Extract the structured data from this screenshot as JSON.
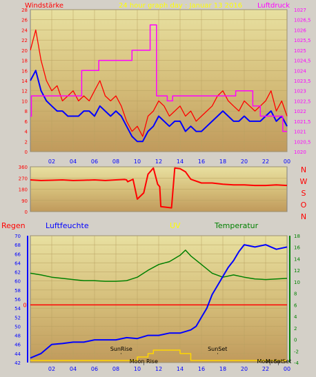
{
  "header": {
    "left": "Windstärke",
    "center": "24 hour graph day : Januar 13 2016",
    "right": "Luftdruck"
  },
  "chart_data": [
    {
      "type": "line",
      "panel": "wind-pressure",
      "x_ticks": [
        "02",
        "04",
        "06",
        "08",
        "10",
        "12",
        "14",
        "16",
        "18",
        "20",
        "22",
        "00"
      ],
      "y_left_ticks": [
        "0",
        "2",
        "4",
        "6",
        "8",
        "10",
        "12",
        "14",
        "16",
        "18",
        "20",
        "22",
        "24",
        "26",
        "28"
      ],
      "y_left_range": [
        0,
        28
      ],
      "y_right_ticks": [
        "1020",
        "1020,5",
        "1021",
        "1021,5",
        "1022",
        "1022,5",
        "1023",
        "1023,5",
        "1024",
        "1024,5",
        "1025",
        "1025,5",
        "1026",
        "1026,5",
        "1027"
      ],
      "y_right_range": [
        1020,
        1027
      ],
      "series": [
        {
          "color": "#ff0000",
          "x": [
            0,
            0.5,
            1,
            1.5,
            2,
            2.5,
            3,
            3.5,
            4,
            4.5,
            5,
            5.5,
            6,
            6.5,
            7,
            7.5,
            8,
            8.5,
            9,
            9.5,
            10,
            10.5,
            11,
            11.5,
            12,
            12.5,
            13,
            13.5,
            14,
            14.5,
            15,
            15.5,
            16,
            16.5,
            17,
            17.5,
            18,
            18.5,
            19,
            19.5,
            20,
            20.5,
            21,
            21.5,
            22,
            22.5,
            23,
            23.5,
            24
          ],
          "y": [
            20,
            24,
            18,
            14,
            12,
            13,
            10,
            11,
            12,
            10,
            11,
            10,
            12,
            14,
            11,
            10,
            11,
            9,
            6,
            4,
            5,
            3,
            7,
            8,
            10,
            9,
            7,
            8,
            9,
            7,
            8,
            6,
            7,
            8,
            9,
            11,
            12,
            10,
            9,
            8,
            10,
            9,
            8,
            9,
            10,
            12,
            8,
            10,
            7
          ]
        },
        {
          "color": "#0000ff",
          "x": [
            0,
            0.5,
            1,
            1.5,
            2,
            2.5,
            3,
            3.5,
            4,
            4.5,
            5,
            5.5,
            6,
            6.5,
            7,
            7.5,
            8,
            8.5,
            9,
            9.5,
            10,
            10.5,
            11,
            11.5,
            12,
            12.5,
            13,
            13.5,
            14,
            14.5,
            15,
            15.5,
            16,
            16.5,
            17,
            17.5,
            18,
            18.5,
            19,
            19.5,
            20,
            20.5,
            21,
            21.5,
            22,
            22.5,
            23,
            23.5,
            24
          ],
          "y": [
            14,
            16,
            12,
            10,
            9,
            8,
            8,
            7,
            7,
            7,
            8,
            8,
            7,
            9,
            8,
            7,
            8,
            7,
            5,
            3,
            2,
            2,
            4,
            5,
            7,
            6,
            5,
            6,
            6,
            4,
            5,
            4,
            4,
            5,
            6,
            7,
            8,
            7,
            6,
            6,
            7,
            6,
            6,
            6,
            7,
            8,
            6,
            7,
            5
          ]
        },
        {
          "color": "#ff00ff",
          "axis": "right",
          "x": [
            0,
            0.1,
            0.1,
            2.4,
            2.4,
            4.8,
            4.8,
            6.4,
            6.4,
            9.5,
            9.5,
            10.6,
            10.6,
            11.2,
            11.2,
            11.8,
            11.8,
            12.8,
            12.8,
            13.3,
            13.3,
            19.2,
            19.2,
            20.8,
            20.8,
            21.5,
            21.5,
            23.6,
            23.6,
            24
          ],
          "y": [
            1021.75,
            1021.75,
            1022.75,
            1022.75,
            1022.75,
            1022.75,
            1024,
            1024,
            1024.5,
            1024.5,
            1025,
            1025,
            1025,
            1025,
            1026.25,
            1026.25,
            1022.75,
            1022.75,
            1022.5,
            1022.5,
            1022.75,
            1022.75,
            1023,
            1023,
            1022.25,
            1022.25,
            1021.75,
            1021.75,
            1021,
            1021
          ]
        }
      ]
    },
    {
      "type": "line",
      "panel": "wind-direction",
      "y_ticks": [
        "0",
        "90",
        "180",
        "270",
        "360"
      ],
      "y_range": [
        0,
        360
      ],
      "compass_labels": [
        "N",
        "W",
        "S",
        "O",
        "N"
      ],
      "series": [
        {
          "color": "#ff0000",
          "x": [
            0,
            1,
            2,
            3,
            4,
            5,
            6,
            7,
            8,
            8.8,
            9,
            9.1,
            9.6,
            10,
            10.6,
            11,
            11.5,
            11.9,
            12.1,
            12.2,
            13.2,
            13.5,
            14,
            14.5,
            15,
            16,
            17,
            18,
            19,
            20,
            21,
            22,
            23,
            24
          ],
          "y": [
            255,
            250,
            252,
            255,
            250,
            252,
            255,
            250,
            255,
            258,
            255,
            240,
            260,
            100,
            150,
            300,
            350,
            220,
            200,
            40,
            30,
            350,
            345,
            320,
            260,
            230,
            230,
            220,
            215,
            215,
            210,
            210,
            215,
            210
          ]
        }
      ]
    },
    {
      "type": "line",
      "panel": "rain-humidity-uv-temperature",
      "labels": {
        "regen": "Regen",
        "luftfeuchte": "Luftfeuchte",
        "uv": "UV",
        "temperatur": "Temperatur"
      },
      "regen_zero_label": "0",
      "y_humidity_ticks": [
        "42",
        "44",
        "46",
        "48",
        "50",
        "52",
        "54",
        "56",
        "58",
        "60",
        "62",
        "64",
        "66",
        "68",
        "70"
      ],
      "y_humidity_range": [
        42,
        70
      ],
      "y_temperature_ticks": [
        "-4",
        "-2",
        "0",
        "2",
        "4",
        "6",
        "8",
        "10",
        "12",
        "14",
        "16",
        "18"
      ],
      "y_temperature_range": [
        -4,
        18
      ],
      "series": [
        {
          "color": "#008000",
          "axis": "temperature",
          "x": [
            0,
            1,
            2,
            3,
            4,
            5,
            6,
            7,
            8,
            9,
            10,
            11,
            12,
            13,
            14,
            14.5,
            15,
            16,
            17,
            18,
            19,
            20,
            21,
            22,
            23,
            24
          ],
          "y": [
            11.5,
            11.2,
            10.8,
            10.6,
            10.4,
            10.2,
            10.2,
            10.1,
            10.1,
            10.2,
            10.8,
            12,
            13,
            13.5,
            14.6,
            15.5,
            14.5,
            13,
            11.5,
            10.8,
            11.2,
            10.8,
            10.5,
            10.4,
            10.5,
            10.6
          ]
        },
        {
          "color": "#0000ff",
          "axis": "humidity",
          "x": [
            0,
            1,
            2,
            3,
            4,
            5,
            6,
            7,
            8,
            9,
            10,
            11,
            12,
            13,
            14,
            15,
            15.5,
            16,
            16.5,
            17,
            17.5,
            18,
            18.5,
            19,
            19.5,
            20,
            21,
            22,
            23,
            24
          ],
          "y": [
            43,
            44,
            46,
            46.2,
            46.5,
            46.5,
            47,
            47,
            47,
            47.5,
            47.3,
            48,
            48,
            48.5,
            48.5,
            49.2,
            50,
            52,
            54,
            57,
            59,
            61,
            63,
            64.5,
            66.5,
            68,
            67.5,
            68,
            67,
            67.5
          ]
        },
        {
          "color": "#ffd700",
          "axis": "uv",
          "x": [
            0,
            10,
            10,
            11,
            11,
            11.5,
            11.5,
            14,
            14,
            15,
            15,
            24
          ],
          "y": [
            0,
            0,
            1,
            1,
            2,
            2,
            3,
            3,
            2,
            2,
            0,
            0
          ]
        }
      ],
      "annotations": [
        {
          "text": "SunRise",
          "x": 8.5
        },
        {
          "text": "SunSet",
          "x": 17.5
        },
        {
          "text": "Moon Rise",
          "x": 10.6
        },
        {
          "text": "Moon Set",
          "x": 22.4
        },
        {
          "text": "Moon Set",
          "x": 23.2
        }
      ],
      "x_ticks": [
        "02",
        "04",
        "06",
        "08",
        "10",
        "12",
        "14",
        "16",
        "18",
        "20",
        "22",
        "00"
      ]
    }
  ]
}
